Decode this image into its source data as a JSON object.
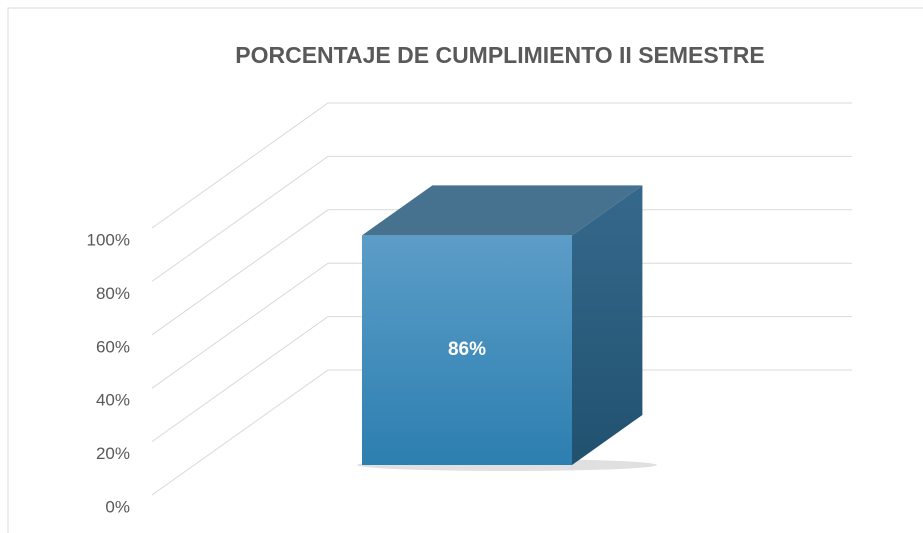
{
  "chart_data": {
    "type": "bar3d",
    "title": "PORCENTAJE DE CUMPLIMIENTO II SEMESTRE",
    "categories": [
      null
    ],
    "values": [
      86
    ],
    "value_labels": [
      "86%"
    ],
    "color": "#3a8bbd",
    "ylim": [
      0,
      100
    ],
    "yticks": [
      {
        "value": 0,
        "label": "0%"
      },
      {
        "value": 20,
        "label": "20%"
      },
      {
        "value": 40,
        "label": "40%"
      },
      {
        "value": 60,
        "label": "60%"
      },
      {
        "value": 80,
        "label": "80%"
      },
      {
        "value": 100,
        "label": "100%"
      }
    ],
    "grid": true
  }
}
